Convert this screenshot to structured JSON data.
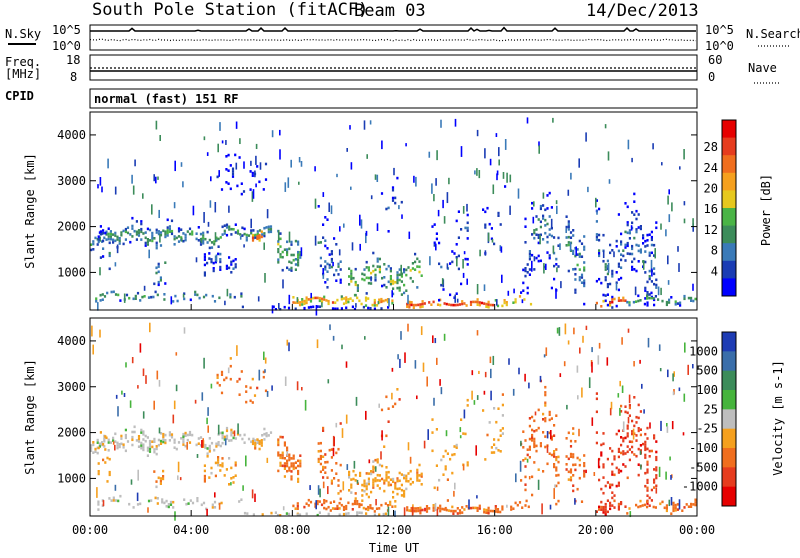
{
  "header": {
    "title": "South Pole Station (fitACF)",
    "beam": "Beam 03",
    "date": "14/Dec/2013"
  },
  "strip_labels": {
    "nsky": "N.Sky",
    "nsky_top": "10^5",
    "nsky_bottom": "10^0",
    "nsearch": "N.Search",
    "nsearch_top": "10^5",
    "nsearch_bottom": "10^0",
    "freq_line1": "Freq.",
    "freq_line2": "[MHz]",
    "freq_top": "18",
    "freq_bottom": "8",
    "nave": "Nave",
    "nave_top": "60",
    "nave_bottom": "0",
    "cpid": "CPID",
    "mode": "normal (fast) 151 RF"
  },
  "chart_data": [
    {
      "type": "heatmap",
      "name": "power",
      "ylabel": "Slant Range [km]",
      "ylim": [
        180,
        4500
      ],
      "xlim": [
        0,
        24
      ],
      "yticks": [
        "1000",
        "2000",
        "3000",
        "4000"
      ],
      "colorbar_label": "Power [dB]",
      "colorbar_ticks": [
        "4",
        "8",
        "12",
        "16",
        "20",
        "24",
        "28"
      ],
      "colors": [
        "#0000ff",
        "#1a3cb4",
        "#3a7ab8",
        "#3c8c5a",
        "#4ab446",
        "#e6c81e",
        "#f5a01e",
        "#f06e1e",
        "#e63c1e",
        "#e60000"
      ]
    },
    {
      "type": "heatmap",
      "name": "velocity",
      "ylabel": "Slant Range [km]",
      "ylim": [
        180,
        4500
      ],
      "xlim": [
        0,
        24
      ],
      "yticks": [
        "1000",
        "2000",
        "3000",
        "4000"
      ],
      "colorbar_label": "Velocity [m s-1]",
      "colorbar_ticks": [
        "1000",
        "500",
        "100",
        "25",
        "-25",
        "-100",
        "-500",
        "-1000"
      ],
      "colors": [
        "#1e3cb4",
        "#3a6eaa",
        "#3c8c5a",
        "#46b43c",
        "#bebebe",
        "#f5a01e",
        "#f06e1e",
        "#e63c1e",
        "#e60000"
      ]
    }
  ],
  "xaxis": {
    "label": "Time UT",
    "ticks": [
      "00:00",
      "04:00",
      "08:00",
      "12:00",
      "16:00",
      "20:00",
      "00:00"
    ]
  }
}
